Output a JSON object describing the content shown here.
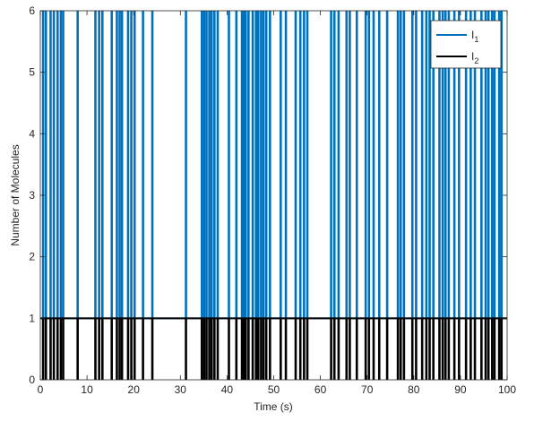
{
  "chart_data": {
    "type": "line",
    "title": "",
    "xlabel": "Time (s)",
    "ylabel": "Number of Molecules",
    "xlim": [
      0,
      100
    ],
    "ylim": [
      0,
      6
    ],
    "xticks": [
      0,
      10,
      20,
      30,
      40,
      50,
      60,
      70,
      80,
      90,
      100
    ],
    "yticks": [
      0,
      1,
      2,
      3,
      4,
      5,
      6
    ],
    "grid": false,
    "legend_position": "top-right",
    "series": [
      {
        "name": "I",
        "subscript": "1",
        "color": "#0072BD",
        "baseline": 1,
        "peak": 6,
        "spike_times": [
          0.6,
          1.2,
          2.2,
          2.9,
          3.7,
          4.4,
          4.9,
          8.0,
          11.8,
          12.6,
          13.3,
          15.3,
          16.4,
          17.0,
          17.5,
          18.8,
          19.5,
          20.2,
          22.0,
          24.0,
          31.2,
          34.6,
          35.1,
          35.6,
          36.2,
          36.7,
          37.3,
          38.0,
          40.4,
          42.0,
          43.2,
          43.6,
          44.0,
          44.6,
          45.5,
          46.2,
          46.7,
          47.3,
          47.8,
          48.4,
          49.2,
          51.5,
          52.6,
          54.7,
          55.7,
          56.5,
          57.2,
          62.3,
          63.0,
          63.9,
          65.6,
          66.3,
          67.8,
          69.7,
          70.4,
          71.4,
          72.6,
          74.3,
          76.6,
          77.2,
          77.9,
          79.7,
          80.5,
          81.8,
          82.7,
          83.4,
          84.2,
          85.5,
          86.2,
          86.8,
          87.5,
          88.7,
          89.7,
          91.2,
          92.2,
          93.1,
          94.5,
          95.4,
          96.0,
          96.8,
          97.3,
          98.3,
          98.8
        ]
      },
      {
        "name": "I",
        "subscript": "2",
        "color": "#000000",
        "baseline": 1,
        "trough": 0,
        "dip_times": [
          0.6,
          1.2,
          2.2,
          2.9,
          3.7,
          4.4,
          4.9,
          8.0,
          11.8,
          12.6,
          13.3,
          15.3,
          16.4,
          17.0,
          17.5,
          18.8,
          19.5,
          20.2,
          22.0,
          24.0,
          31.2,
          34.6,
          35.1,
          35.6,
          36.2,
          36.7,
          37.3,
          38.0,
          40.4,
          42.0,
          43.2,
          43.6,
          44.0,
          44.6,
          45.5,
          46.2,
          46.7,
          47.3,
          47.8,
          48.4,
          49.2,
          51.5,
          52.6,
          54.7,
          55.7,
          56.5,
          57.2,
          62.3,
          63.0,
          63.9,
          65.6,
          66.3,
          67.8,
          69.7,
          70.4,
          71.4,
          72.6,
          74.3,
          76.6,
          77.2,
          77.9,
          79.7,
          80.5,
          81.8,
          82.7,
          83.4,
          84.2,
          85.5,
          86.2,
          86.8,
          87.5,
          88.7,
          89.7,
          91.2,
          92.2,
          93.1,
          94.5,
          95.4,
          96.0,
          96.8,
          97.3,
          98.3,
          98.8
        ]
      }
    ]
  }
}
